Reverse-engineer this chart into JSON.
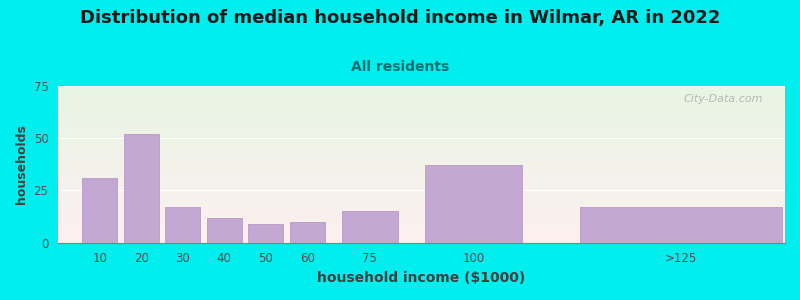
{
  "title": "Distribution of median household income in Wilmar, AR in 2022",
  "subtitle": "All residents",
  "xlabel": "household income ($1000)",
  "ylabel": "households",
  "title_fontsize": 13,
  "subtitle_fontsize": 10,
  "subtitle_color": "#007070",
  "ylabel_fontsize": 9,
  "xlabel_fontsize": 10,
  "background_color": "#00EEEE",
  "plot_bg_gradient_top": "#e8f5e4",
  "plot_bg_gradient_bottom": "#fdf0f0",
  "bar_color": "#c4a8d4",
  "bar_edge_color": "#b090c0",
  "bar_positions": [
    10,
    20,
    30,
    40,
    50,
    60,
    75,
    100,
    150
  ],
  "bar_widths": [
    9,
    9,
    9,
    9,
    9,
    9,
    14,
    24,
    49
  ],
  "tick_positions": [
    10,
    20,
    30,
    40,
    50,
    60,
    75,
    100,
    150
  ],
  "tick_labels": [
    "10",
    "20",
    "30",
    "40",
    "50",
    "60",
    "75",
    "100",
    ">125"
  ],
  "values": [
    31,
    52,
    17,
    12,
    9,
    10,
    15,
    37,
    17
  ],
  "xlim": [
    0,
    175
  ],
  "ylim": [
    0,
    75
  ],
  "yticks": [
    0,
    25,
    50,
    75
  ],
  "watermark": "City-Data.com"
}
